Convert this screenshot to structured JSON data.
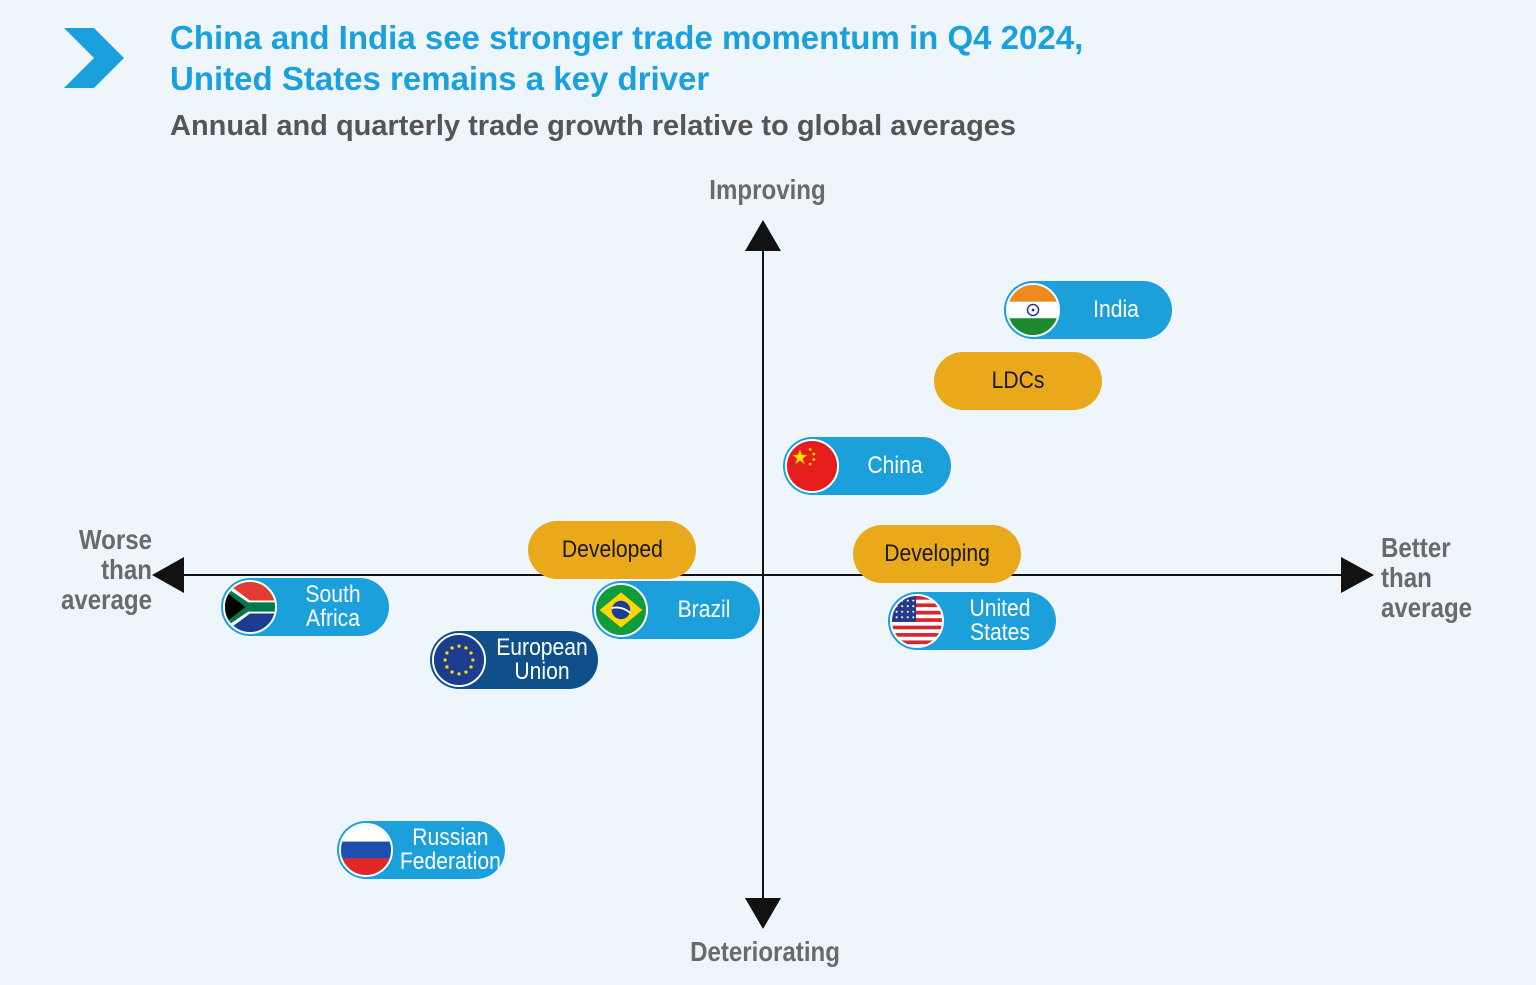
{
  "title": {
    "line1": "China and India see stronger trade momentum in Q4 2024,",
    "line2": "United States remains a key driver"
  },
  "subtitle": "Annual and quarterly trade growth relative to global averages",
  "colors": {
    "background": "#eef6fb",
    "title": "#1aa0dc",
    "economy_pill": "#1ba0dc",
    "eu_pill": "#0f4f8a",
    "group_pill": "#eaa91b",
    "axis": "#111111"
  },
  "chart_data": {
    "type": "scatter",
    "x_axis": {
      "label_left": [
        "Worse",
        "than",
        "average"
      ],
      "label_right": [
        "Better",
        "than",
        "average"
      ]
    },
    "y_axis": {
      "label_top": "Improving",
      "label_bottom": "Deteriorating"
    },
    "points": [
      {
        "label": [
          "India"
        ],
        "x": 0.56,
        "y": 0.75,
        "category": "economy",
        "flag": "india-flag-icon"
      },
      {
        "label": [
          "LDCs"
        ],
        "x": 0.44,
        "y": 0.55,
        "category": "group"
      },
      {
        "label": [
          "China"
        ],
        "x": 0.18,
        "y": 0.31,
        "category": "economy",
        "flag": "china-flag-icon"
      },
      {
        "label": [
          "Developed"
        ],
        "x": -0.26,
        "y": 0.07,
        "category": "group"
      },
      {
        "label": [
          "Developing"
        ],
        "x": 0.3,
        "y": 0.06,
        "category": "group"
      },
      {
        "label": [
          "South",
          "Africa"
        ],
        "x": -0.79,
        "y": -0.09,
        "category": "economy",
        "flag": "south-africa-flag-icon"
      },
      {
        "label": [
          "Brazil"
        ],
        "x": -0.15,
        "y": -0.1,
        "category": "economy",
        "flag": "brazil-flag-icon"
      },
      {
        "label": [
          "United",
          "States"
        ],
        "x": 0.36,
        "y": -0.13,
        "category": "economy",
        "flag": "united-states-flag-icon"
      },
      {
        "label": [
          "European",
          "Union"
        ],
        "x": -0.43,
        "y": -0.24,
        "category": "eu",
        "flag": "eu-flag-icon"
      },
      {
        "label": [
          "Russian",
          "Federation"
        ],
        "x": -0.59,
        "y": -0.78,
        "category": "economy",
        "flag": "russia-flag-icon"
      }
    ],
    "xlim": [
      -1,
      1
    ],
    "ylim": [
      -1,
      1
    ],
    "grid": false
  }
}
